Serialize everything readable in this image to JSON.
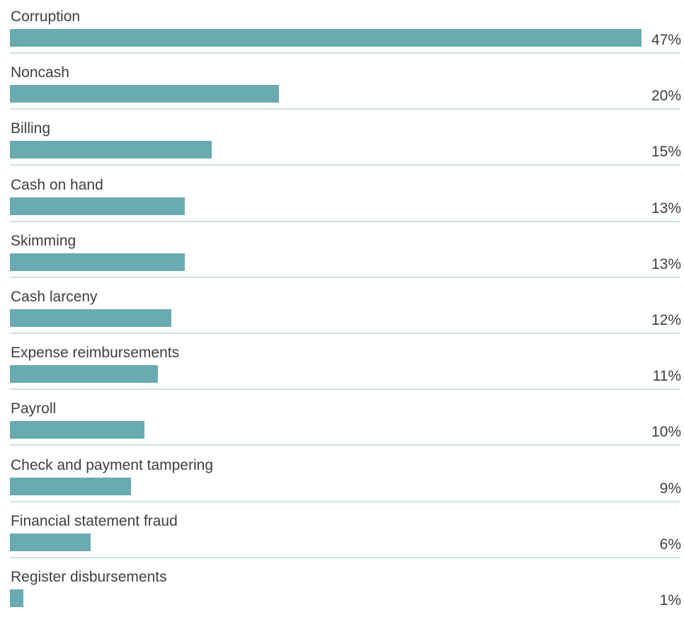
{
  "chart_data": {
    "type": "bar",
    "orientation": "horizontal",
    "categories": [
      "Corruption",
      "Noncash",
      "Billing",
      "Cash on hand",
      "Skimming",
      "Cash larceny",
      "Expense reimbursements",
      "Payroll",
      "Check and payment tampering",
      "Financial statement fraud",
      "Register disbursements"
    ],
    "values": [
      47,
      20,
      15,
      13,
      13,
      12,
      11,
      10,
      9,
      6,
      1
    ],
    "value_labels": [
      "47%",
      "20%",
      "15%",
      "13%",
      "13%",
      "12%",
      "11%",
      "10%",
      "9%",
      "6%",
      "1%"
    ],
    "unit": "%",
    "xlim": [
      0,
      47
    ],
    "bar_color": "#6aabb1",
    "divider_color": "#cfe1e2",
    "grid": false,
    "legend": "none"
  }
}
